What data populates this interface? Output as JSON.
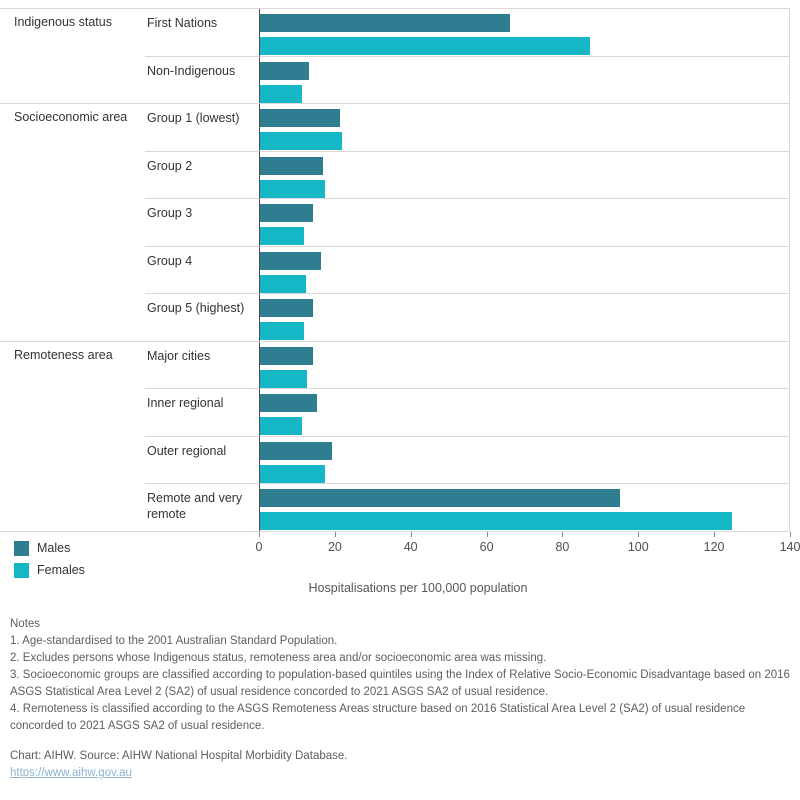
{
  "chart_data": {
    "type": "bar",
    "orientation": "horizontal",
    "title": "",
    "xlabel": "Hospitalisations per 100,000 population",
    "ylabel": "",
    "xlim": [
      0,
      140
    ],
    "x_ticks": [
      0,
      20,
      40,
      60,
      80,
      100,
      120,
      140
    ],
    "grid": "row-separators",
    "legend_position": "bottom-left",
    "legend": [
      {
        "name": "Males",
        "color": "#2e7d91"
      },
      {
        "name": "Females",
        "color": "#15b7c6"
      }
    ],
    "groups": [
      {
        "label": "Indigenous status",
        "rows": [
          {
            "label": "First Nations",
            "males": 66,
            "females": 87
          },
          {
            "label": "Non-Indigenous",
            "males": 13,
            "females": 11
          }
        ]
      },
      {
        "label": "Socioeconomic area",
        "rows": [
          {
            "label": "Group 1 (lowest)",
            "males": 21,
            "females": 21.5
          },
          {
            "label": "Group 2",
            "males": 16.5,
            "females": 17
          },
          {
            "label": "Group 3",
            "males": 14,
            "females": 11.5
          },
          {
            "label": "Group 4",
            "males": 16,
            "females": 12
          },
          {
            "label": "Group 5 (highest)",
            "males": 14,
            "females": 11.5
          }
        ]
      },
      {
        "label": "Remoteness area",
        "rows": [
          {
            "label": "Major cities",
            "males": 14,
            "females": 12.5
          },
          {
            "label": "Inner regional",
            "males": 15,
            "females": 11
          },
          {
            "label": "Outer regional",
            "males": 19,
            "females": 17
          },
          {
            "label": "Remote and very remote",
            "males": 95,
            "females": 124.5
          }
        ]
      }
    ]
  },
  "notes": {
    "heading": "Notes",
    "items": [
      "1. Age-standardised to the 2001 Australian Standard Population.",
      "2. Excludes persons whose Indigenous status, remoteness area and/or socioeconomic area was missing.",
      "3. Socioeconomic groups are classified according to population-based quintiles using the Index of Relative Socio-Economic Disadvantage based on 2016 ASGS Statistical Area Level 2 (SA2) of usual residence concorded to 2021 ASGS SA2 of usual residence.",
      "4. Remoteness is classified according to the ASGS Remoteness Areas structure based on 2016 Statistical Area Level 2 (SA2) of usual residence concorded to 2021 ASGS SA2 of usual residence."
    ],
    "source_line": "Chart: AIHW. Source: AIHW National Hospital Morbidity Database.",
    "link": "https://www.aihw.gov.au"
  }
}
